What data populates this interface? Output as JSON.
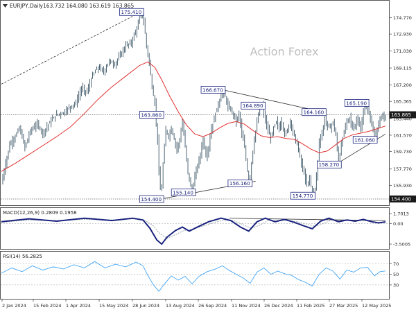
{
  "header": {
    "symbol_info": "EURJPY,Daily",
    "ohlc": "163.732 164.080 163.619 163.865"
  },
  "watermark": "Action Forex",
  "colors": {
    "candle": "#3b5566",
    "ma_red": "#e03030",
    "macd_line": "#1a237e",
    "signal_line": "#9aa7b0",
    "rsi_line": "#42a5f5",
    "label_border": "#1a237e",
    "label_text": "#1a237e",
    "price_tag_bg": "#1a1a1a",
    "trendline": "#2a2a2a",
    "grid": "#c8c8c8"
  },
  "chart_data": {
    "type": "line",
    "title": "EURJPY,Daily",
    "x_tick_labels": [
      "2 Jan 2024",
      "15 Feb 2024",
      "1 Apr 2024",
      "15 May 2024",
      "28 Jun 2024",
      "13 Aug 2024",
      "26 Sep 2024",
      "11 Nov 2024",
      "26 Dec 2024",
      "11 Feb 2025",
      "27 Mar 2025",
      "12 May 2025"
    ],
    "price_panel": {
      "y_tick_labels": [
        "174.770",
        "172.930",
        "171.030",
        "169.115",
        "167.200",
        "165.365",
        "163.440",
        "161.570",
        "159.730",
        "157.770",
        "155.930",
        "154.400"
      ],
      "ylim": [
        153.7,
        176.6
      ],
      "price_series": [
        [
          0,
          156.1
        ],
        [
          5,
          158.0
        ],
        [
          12,
          160.5
        ],
        [
          20,
          161.4
        ],
        [
          26,
          162.4
        ],
        [
          34,
          160.2
        ],
        [
          42,
          162.1
        ],
        [
          52,
          162.8
        ],
        [
          60,
          161.8
        ],
        [
          70,
          163.0
        ],
        [
          80,
          163.9
        ],
        [
          90,
          164.1
        ],
        [
          100,
          164.8
        ],
        [
          108,
          165.2
        ],
        [
          116,
          166.8
        ],
        [
          124,
          166.4
        ],
        [
          132,
          168.3
        ],
        [
          140,
          169.2
        ],
        [
          148,
          168.7
        ],
        [
          156,
          169.9
        ],
        [
          164,
          169.5
        ],
        [
          172,
          170.6
        ],
        [
          180,
          171.6
        ],
        [
          188,
          172.0
        ],
        [
          194,
          173.2
        ],
        [
          198,
          174.0
        ],
        [
          202,
          175.41
        ],
        [
          206,
          174.4
        ],
        [
          210,
          171.6
        ],
        [
          214,
          169.7
        ],
        [
          218,
          167.0
        ],
        [
          222,
          165.1
        ],
        [
          226,
          161.0
        ],
        [
          228,
          157.5
        ],
        [
          231,
          154.4
        ],
        [
          234,
          158.3
        ],
        [
          238,
          162.2
        ],
        [
          242,
          161.4
        ],
        [
          246,
          162.4
        ],
        [
          250,
          161.1
        ],
        [
          254,
          160.0
        ],
        [
          258,
          161.1
        ],
        [
          262,
          163.0
        ],
        [
          266,
          160.3
        ],
        [
          270,
          157.4
        ],
        [
          274,
          155.8
        ],
        [
          277,
          155.14
        ],
        [
          280,
          157.0
        ],
        [
          284,
          158.2
        ],
        [
          288,
          159.4
        ],
        [
          292,
          161.2
        ],
        [
          296,
          159.2
        ],
        [
          300,
          160.2
        ],
        [
          304,
          162.3
        ],
        [
          308,
          163.4
        ],
        [
          312,
          164.6
        ],
        [
          316,
          165.5
        ],
        [
          320,
          166.67
        ],
        [
          324,
          165.9
        ],
        [
          328,
          164.7
        ],
        [
          332,
          164.4
        ],
        [
          336,
          163.9
        ],
        [
          340,
          163.1
        ],
        [
          344,
          164.0
        ],
        [
          348,
          161.7
        ],
        [
          352,
          160.2
        ],
        [
          356,
          157.6
        ],
        [
          359,
          156.16
        ],
        [
          362,
          158.5
        ],
        [
          366,
          161.1
        ],
        [
          370,
          163.0
        ],
        [
          374,
          164.5
        ],
        [
          378,
          164.89
        ],
        [
          382,
          163.2
        ],
        [
          386,
          162.1
        ],
        [
          390,
          161.2
        ],
        [
          394,
          162.4
        ],
        [
          398,
          163.1
        ],
        [
          402,
          162.3
        ],
        [
          406,
          163.1
        ],
        [
          410,
          161.6
        ],
        [
          414,
          162.1
        ],
        [
          418,
          163.3
        ],
        [
          422,
          161.9
        ],
        [
          426,
          161.1
        ],
        [
          430,
          159.9
        ],
        [
          434,
          158.4
        ],
        [
          438,
          157.3
        ],
        [
          442,
          155.9
        ],
        [
          446,
          156.9
        ],
        [
          450,
          154.77
        ],
        [
          454,
          155.6
        ],
        [
          457,
          157.6
        ],
        [
          460,
          160.8
        ],
        [
          464,
          161.7
        ],
        [
          468,
          163.4
        ],
        [
          472,
          162.6
        ],
        [
          476,
          162.4
        ],
        [
          480,
          163.1
        ],
        [
          484,
          161.5
        ],
        [
          488,
          158.27
        ],
        [
          492,
          160.6
        ],
        [
          496,
          161.9
        ],
        [
          500,
          163.2
        ],
        [
          504,
          163.6
        ],
        [
          508,
          162.3
        ],
        [
          512,
          162.7
        ],
        [
          516,
          163.6
        ],
        [
          520,
          162.0
        ],
        [
          524,
          164.1
        ],
        [
          528,
          165.19
        ],
        [
          532,
          163.9
        ],
        [
          536,
          163.0
        ],
        [
          540,
          161.06
        ],
        [
          544,
          162.3
        ],
        [
          548,
          163.2
        ],
        [
          552,
          163.5
        ],
        [
          556,
          163.865
        ]
      ],
      "moving_average": [
        [
          0,
          157.5
        ],
        [
          20,
          158.4
        ],
        [
          40,
          159.4
        ],
        [
          60,
          160.4
        ],
        [
          80,
          161.4
        ],
        [
          100,
          162.5
        ],
        [
          120,
          164.0
        ],
        [
          140,
          165.6
        ],
        [
          160,
          167.0
        ],
        [
          180,
          168.2
        ],
        [
          200,
          169.4
        ],
        [
          212,
          169.8
        ],
        [
          222,
          169.2
        ],
        [
          232,
          167.8
        ],
        [
          244,
          165.9
        ],
        [
          256,
          164.2
        ],
        [
          268,
          162.7
        ],
        [
          280,
          161.7
        ],
        [
          292,
          161.4
        ],
        [
          304,
          161.8
        ],
        [
          316,
          162.4
        ],
        [
          328,
          162.9
        ],
        [
          340,
          163.1
        ],
        [
          352,
          162.8
        ],
        [
          364,
          162.1
        ],
        [
          376,
          161.5
        ],
        [
          388,
          161.3
        ],
        [
          400,
          161.4
        ],
        [
          412,
          161.2
        ],
        [
          424,
          161.1
        ],
        [
          436,
          160.6
        ],
        [
          448,
          160.0
        ],
        [
          460,
          159.6
        ],
        [
          472,
          159.8
        ],
        [
          484,
          160.5
        ],
        [
          496,
          161.2
        ],
        [
          508,
          161.6
        ],
        [
          520,
          161.8
        ],
        [
          532,
          162.0
        ],
        [
          544,
          162.3
        ],
        [
          556,
          162.6
        ]
      ],
      "annotations": [
        {
          "label": "175.410",
          "idx": 202,
          "value": 175.41,
          "pos": "left"
        },
        {
          "label": "166.670",
          "idx": 320,
          "value": 166.67,
          "pos": "left"
        },
        {
          "label": "164.890",
          "idx": 378,
          "value": 164.89,
          "pos": "left"
        },
        {
          "label": "163.860",
          "idx": 231,
          "value": 163.86,
          "pos": "left"
        },
        {
          "label": "164.160",
          "idx": 466,
          "value": 164.16,
          "pos": "left"
        },
        {
          "label": "165.190",
          "idx": 528,
          "value": 165.19,
          "pos": "left"
        },
        {
          "label": "161.060",
          "idx": 540,
          "value": 161.06,
          "pos": "left"
        },
        {
          "label": "158.270",
          "idx": 488,
          "value": 158.27,
          "pos": "left"
        },
        {
          "label": "156.160",
          "idx": 359,
          "value": 156.16,
          "pos": "left"
        },
        {
          "label": "155.140",
          "idx": 277,
          "value": 155.14,
          "pos": "left"
        },
        {
          "label": "154.400",
          "idx": 231,
          "value": 154.4,
          "pos": "left"
        },
        {
          "label": "154.770",
          "idx": 450,
          "value": 154.77,
          "pos": "left"
        }
      ],
      "trendlines": [
        {
          "from": [
            0,
            167.3
          ],
          "to": [
            202,
            175.41
          ],
          "style": "dashed"
        },
        {
          "from": [
            320,
            166.67
          ],
          "to": [
            466,
            164.16
          ],
          "style": "solid"
        },
        {
          "from": [
            231,
            154.4
          ],
          "to": [
            368,
            156.4
          ],
          "style": "solid"
        },
        {
          "from": [
            476,
            157.9
          ],
          "to": [
            556,
            161.7
          ],
          "style": "solid"
        }
      ],
      "horizontal_lines": [
        {
          "value": 163.865,
          "style": "dotted"
        },
        {
          "value": 154.4,
          "style": "dotted"
        }
      ],
      "current_price": "163.865",
      "support_price": "154.400"
    },
    "macd_panel": {
      "label": "MACD(12,26,9) 0.2809 0.1958",
      "y_tick_labels": [
        "1.7013",
        "0.00",
        "-3.5005"
      ],
      "ylim": [
        -4.2,
        2.4
      ],
      "macd_line": [
        [
          0,
          0.3
        ],
        [
          40,
          0.8
        ],
        [
          80,
          0.4
        ],
        [
          120,
          0.9
        ],
        [
          160,
          0.5
        ],
        [
          190,
          0.9
        ],
        [
          205,
          0.6
        ],
        [
          215,
          -0.8
        ],
        [
          225,
          -2.8
        ],
        [
          232,
          -3.5
        ],
        [
          240,
          -2.3
        ],
        [
          252,
          -1.2
        ],
        [
          262,
          -0.6
        ],
        [
          272,
          -1.3
        ],
        [
          282,
          -0.7
        ],
        [
          300,
          0.3
        ],
        [
          318,
          0.9
        ],
        [
          332,
          0.5
        ],
        [
          346,
          -0.6
        ],
        [
          358,
          -1.3
        ],
        [
          370,
          0.3
        ],
        [
          382,
          0.9
        ],
        [
          396,
          0.3
        ],
        [
          410,
          0.7
        ],
        [
          424,
          0.2
        ],
        [
          438,
          -0.4
        ],
        [
          450,
          -0.9
        ],
        [
          462,
          0.4
        ],
        [
          474,
          0.9
        ],
        [
          488,
          0.3
        ],
        [
          500,
          0.6
        ],
        [
          512,
          0.4
        ],
        [
          524,
          0.7
        ],
        [
          536,
          0.3
        ],
        [
          546,
          0.1
        ],
        [
          556,
          0.28
        ]
      ],
      "signal_line": [
        [
          0,
          0.2
        ],
        [
          40,
          0.6
        ],
        [
          80,
          0.5
        ],
        [
          120,
          0.7
        ],
        [
          160,
          0.6
        ],
        [
          190,
          0.8
        ],
        [
          208,
          0.5
        ],
        [
          220,
          -0.4
        ],
        [
          230,
          -1.8
        ],
        [
          240,
          -2.5
        ],
        [
          252,
          -1.9
        ],
        [
          264,
          -1.2
        ],
        [
          276,
          -1.0
        ],
        [
          290,
          -0.5
        ],
        [
          306,
          0.1
        ],
        [
          322,
          0.6
        ],
        [
          336,
          0.5
        ],
        [
          350,
          -0.2
        ],
        [
          362,
          -0.8
        ],
        [
          374,
          -0.3
        ],
        [
          386,
          0.5
        ],
        [
          400,
          0.5
        ],
        [
          414,
          0.5
        ],
        [
          428,
          0.3
        ],
        [
          442,
          -0.1
        ],
        [
          454,
          -0.5
        ],
        [
          466,
          0.0
        ],
        [
          478,
          0.6
        ],
        [
          492,
          0.5
        ],
        [
          506,
          0.5
        ],
        [
          520,
          0.5
        ],
        [
          534,
          0.4
        ],
        [
          546,
          0.2
        ],
        [
          556,
          0.2
        ]
      ],
      "trendline": {
        "from": [
          330,
          0.9
        ],
        "to": [
          556,
          0.5
        ]
      }
    },
    "rsi_panel": {
      "label": "RSI(14) 56.2825",
      "y_tick_labels": [
        "70",
        "50",
        "30"
      ],
      "ylim": [
        5,
        90
      ],
      "levels": [
        70,
        50,
        30
      ],
      "rsi_line": [
        [
          0,
          52
        ],
        [
          15,
          62
        ],
        [
          30,
          55
        ],
        [
          45,
          66
        ],
        [
          60,
          58
        ],
        [
          75,
          64
        ],
        [
          90,
          60
        ],
        [
          105,
          68
        ],
        [
          120,
          62
        ],
        [
          135,
          74
        ],
        [
          150,
          62
        ],
        [
          165,
          69
        ],
        [
          180,
          64
        ],
        [
          195,
          73
        ],
        [
          205,
          66
        ],
        [
          212,
          48
        ],
        [
          220,
          30
        ],
        [
          228,
          18
        ],
        [
          236,
          32
        ],
        [
          246,
          47
        ],
        [
          256,
          39
        ],
        [
          266,
          46
        ],
        [
          276,
          32
        ],
        [
          286,
          46
        ],
        [
          298,
          55
        ],
        [
          310,
          60
        ],
        [
          320,
          66
        ],
        [
          330,
          57
        ],
        [
          340,
          50
        ],
        [
          350,
          43
        ],
        [
          360,
          33
        ],
        [
          370,
          54
        ],
        [
          380,
          62
        ],
        [
          390,
          50
        ],
        [
          400,
          56
        ],
        [
          410,
          51
        ],
        [
          420,
          48
        ],
        [
          430,
          40
        ],
        [
          440,
          35
        ],
        [
          450,
          28
        ],
        [
          460,
          50
        ],
        [
          470,
          62
        ],
        [
          480,
          56
        ],
        [
          490,
          41
        ],
        [
          500,
          58
        ],
        [
          510,
          54
        ],
        [
          520,
          62
        ],
        [
          530,
          63
        ],
        [
          540,
          47
        ],
        [
          548,
          55
        ],
        [
          556,
          56.28
        ]
      ]
    }
  }
}
